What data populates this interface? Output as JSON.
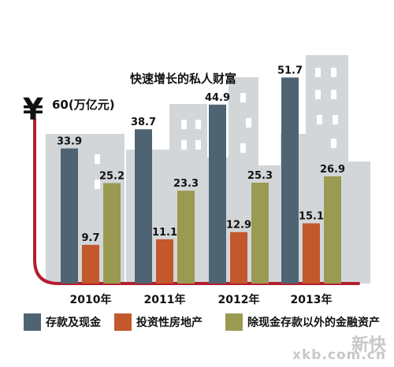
{
  "chart_data": {
    "type": "bar",
    "title": "快速增长的私人财富",
    "currency_symbol": "¥",
    "ylabel": "60(万亿元)",
    "ylim": [
      0,
      60
    ],
    "categories": [
      "2010年",
      "2011年",
      "2012年",
      "2013年"
    ],
    "series": [
      {
        "name": "存款及现金",
        "color": "#4f6473",
        "values": [
          33.9,
          38.7,
          44.9,
          51.7
        ],
        "labels": [
          "33.9",
          "38.7",
          "44.9",
          "51.7"
        ]
      },
      {
        "name": "投资性房地产",
        "color": "#c2582b",
        "values": [
          9.7,
          11.1,
          12.9,
          15.1
        ],
        "labels": [
          "9.7",
          "11.1",
          "12.9",
          "15.1"
        ]
      },
      {
        "name": "除现金存款以外的金融资产",
        "color": "#9a9a52",
        "values": [
          25.2,
          23.3,
          25.3,
          26.9
        ],
        "labels": [
          "25.2",
          "23.3",
          "25.3",
          "26.9"
        ]
      }
    ],
    "legend_position": "bottom",
    "grid": false
  },
  "colors": {
    "axis": "#b31e2e",
    "buildings": "#d3d6d9",
    "windows": "#ffffff"
  },
  "watermark": {
    "text": "新快",
    "url": "xkb.com.cn"
  }
}
